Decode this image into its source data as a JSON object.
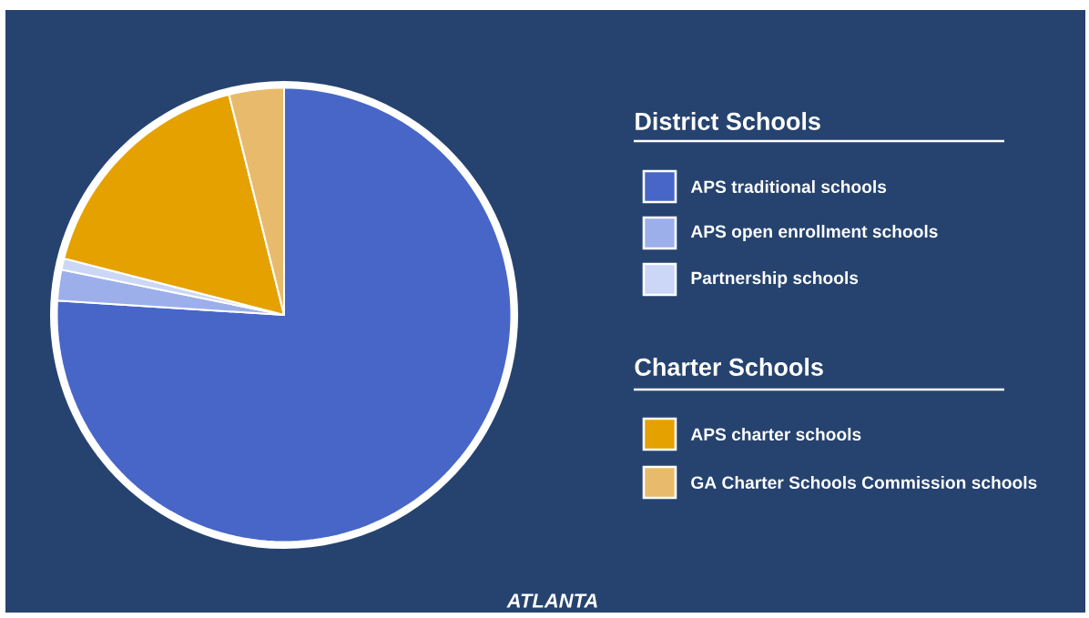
{
  "chart_data": {
    "type": "pie",
    "categories": [
      "APS traditional schools",
      "APS open enrollment schools",
      "Partnership schools",
      "APS charter schools",
      "GA Charter Schools Commission schools"
    ],
    "values": [
      76,
      2.2,
      0.8,
      17.1,
      3.9
    ],
    "colors": [
      "#4766c8",
      "#9dafea",
      "#ccd6f7",
      "#e5a100",
      "#e8bb6c"
    ],
    "legend": "right",
    "annotations": [
      "District Schools",
      "Charter Schools",
      "ATLANTA"
    ]
  }
}
